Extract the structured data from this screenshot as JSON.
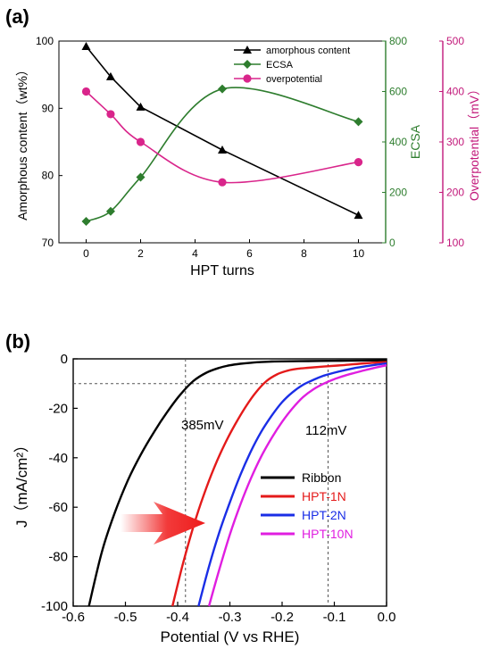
{
  "chart_data": [
    {
      "panel_label": "(a)",
      "type": "line",
      "xlabel": "HPT turns",
      "xlim": [
        -1,
        11
      ],
      "xticks": [
        0,
        2,
        4,
        6,
        8,
        10
      ],
      "axes": [
        {
          "id": "left",
          "label": "Amorphous content（wt%）",
          "lim": [
            70,
            100
          ],
          "ticks": [
            70,
            80,
            90,
            100
          ],
          "color": "#000000"
        },
        {
          "id": "right1",
          "label": "ECSA",
          "lim": [
            0,
            800
          ],
          "ticks": [
            0,
            200,
            400,
            600,
            800
          ],
          "color": "#2e7d2e"
        },
        {
          "id": "right2",
          "label": "Overpotential（mV）",
          "lim": [
            100,
            500
          ],
          "ticks": [
            100,
            200,
            300,
            400,
            500
          ],
          "color": "#c2187a"
        }
      ],
      "legend_position": "top-right",
      "series": [
        {
          "name": "amorphous content",
          "axis": "left",
          "color": "#000000",
          "marker": "triangle",
          "smooth": false,
          "x": [
            0,
            0.9,
            2,
            5,
            10
          ],
          "y": [
            99.2,
            94.7,
            90.2,
            83.8,
            74.1
          ]
        },
        {
          "name": "ECSA",
          "axis": "right1",
          "color": "#2e7d2e",
          "marker": "diamond",
          "smooth": true,
          "x": [
            0,
            0.9,
            2,
            5,
            10
          ],
          "y": [
            85,
            125,
            260,
            610,
            480
          ]
        },
        {
          "name": "overpotential",
          "axis": "right2",
          "color": "#d9258b",
          "marker": "circle",
          "smooth": true,
          "x": [
            0,
            0.9,
            2,
            5,
            10
          ],
          "y": [
            400,
            355,
            300,
            220,
            260
          ]
        }
      ]
    },
    {
      "panel_label": "(b)",
      "type": "line",
      "xlabel": "Potential (V vs RHE)",
      "ylabel": "J（mA/cm²）",
      "xlim": [
        -0.6,
        0.0
      ],
      "ylim": [
        -100,
        0
      ],
      "xticks": [
        "-0.6",
        "-0.5",
        "-0.4",
        "-0.3",
        "-0.2",
        "-0.1",
        "0.0"
      ],
      "yticks": [
        "0",
        "-20",
        "-40",
        "-60",
        "-80",
        "-100"
      ],
      "reference_lines": {
        "j": -10,
        "ribbon_potential": -0.385,
        "hpt10_potential": -0.112
      },
      "annotations": [
        "385mV",
        "112mV"
      ],
      "legend_position": "bottom-right",
      "series": [
        {
          "name": "Ribbon",
          "color": "#000000",
          "x": [
            -0.57,
            -0.545,
            -0.52,
            -0.495,
            -0.47,
            -0.445,
            -0.42,
            -0.395,
            -0.37,
            -0.345,
            -0.32,
            -0.3,
            -0.28,
            -0.26,
            -0.24,
            -0.22,
            -0.2,
            -0.15,
            -0.1,
            -0.05,
            0.0
          ],
          "y": [
            -100,
            -78,
            -62,
            -49,
            -38.5,
            -29.5,
            -21.5,
            -14.5,
            -9.0,
            -5.6,
            -3.6,
            -2.6,
            -2.0,
            -1.6,
            -1.3,
            -1.1,
            -1.0,
            -0.9,
            -0.8,
            -0.7,
            -0.6
          ]
        },
        {
          "name": "HPT-1N",
          "color": "#e41a1a",
          "x": [
            -0.41,
            -0.39,
            -0.37,
            -0.35,
            -0.33,
            -0.31,
            -0.29,
            -0.27,
            -0.25,
            -0.23,
            -0.21,
            -0.19,
            -0.17,
            -0.15,
            -0.12,
            -0.08,
            -0.04,
            0.0
          ],
          "y": [
            -100,
            -83,
            -68,
            -55,
            -44,
            -34.5,
            -26.5,
            -19.5,
            -13.5,
            -9.0,
            -6.3,
            -4.8,
            -4.0,
            -3.6,
            -3.1,
            -2.5,
            -1.8,
            -1.3
          ]
        },
        {
          "name": "HPT-2N",
          "color": "#1a2ee6",
          "x": [
            -0.36,
            -0.34,
            -0.32,
            -0.3,
            -0.28,
            -0.26,
            -0.24,
            -0.22,
            -0.2,
            -0.18,
            -0.16,
            -0.14,
            -0.12,
            -0.1,
            -0.08,
            -0.06,
            -0.04,
            -0.02,
            0.0
          ],
          "y": [
            -100,
            -84,
            -70,
            -58,
            -47,
            -37.5,
            -29.5,
            -23,
            -17.5,
            -13.5,
            -10.5,
            -8.5,
            -6.8,
            -5.6,
            -4.6,
            -3.7,
            -3.0,
            -2.4,
            -1.8
          ]
        },
        {
          "name": "HPT-10N",
          "color": "#e01ee0",
          "x": [
            -0.34,
            -0.32,
            -0.3,
            -0.28,
            -0.26,
            -0.24,
            -0.22,
            -0.2,
            -0.18,
            -0.16,
            -0.14,
            -0.12,
            -0.1,
            -0.08,
            -0.06,
            -0.04,
            -0.02,
            0.0
          ],
          "y": [
            -100,
            -85,
            -71,
            -59,
            -48.5,
            -39.5,
            -32,
            -25.5,
            -20,
            -15.5,
            -12.3,
            -10.0,
            -8.2,
            -6.8,
            -5.6,
            -4.5,
            -3.5,
            -2.6
          ]
        }
      ]
    }
  ]
}
